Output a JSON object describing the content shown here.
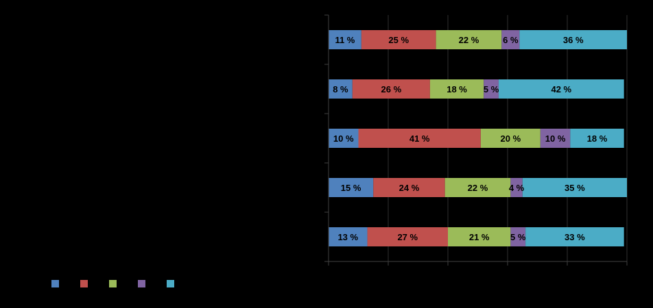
{
  "chart_data": {
    "type": "bar",
    "orientation": "horizontal",
    "stacked": "percent",
    "title": "",
    "xlabel": "",
    "ylabel": "",
    "xlim": [
      0,
      100
    ],
    "grid": "vertical",
    "legend_position": "bottom-left",
    "categories": [
      "",
      "",
      "",
      "",
      ""
    ],
    "series": [
      {
        "color": "#4F81BD",
        "values": [
          11,
          8,
          10,
          15,
          13
        ],
        "labels": [
          "11 %",
          "8 %",
          "10 %",
          "15 %",
          "13 %"
        ]
      },
      {
        "color": "#C0504D",
        "values": [
          25,
          26,
          41,
          24,
          27
        ],
        "labels": [
          "25 %",
          "26 %",
          "41 %",
          "24 %",
          "27 %"
        ]
      },
      {
        "color": "#9BBB59",
        "values": [
          22,
          18,
          20,
          22,
          21
        ],
        "labels": [
          "22 %",
          "18 %",
          "20 %",
          "22 %",
          "21 %"
        ]
      },
      {
        "color": "#8064A2",
        "values": [
          6,
          5,
          10,
          4,
          5
        ],
        "labels": [
          "6 %",
          "5 %",
          "10 %",
          "4 %",
          "5 %"
        ]
      },
      {
        "color": "#4BACC6",
        "values": [
          36,
          42,
          18,
          35,
          33
        ],
        "labels": [
          "36 %",
          "42 %",
          "18 %",
          "35 %",
          "33 %"
        ]
      }
    ]
  }
}
